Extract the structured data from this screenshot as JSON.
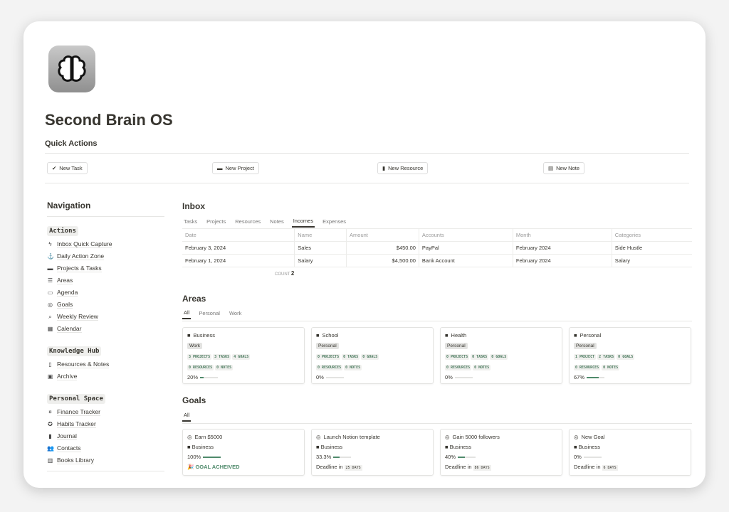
{
  "page": {
    "title": "Second Brain OS",
    "quick_actions_heading": "Quick Actions"
  },
  "quick_actions": [
    {
      "label": "New Task",
      "icon": "check-circle-icon"
    },
    {
      "label": "New Project",
      "icon": "folder-icon"
    },
    {
      "label": "New Resource",
      "icon": "bookmark-icon"
    },
    {
      "label": "New Note",
      "icon": "note-icon"
    }
  ],
  "navigation": {
    "heading": "Navigation",
    "groups": [
      {
        "label": "Actions",
        "items": [
          {
            "label": "Inbox Quick Capture",
            "icon": "bolt-icon"
          },
          {
            "label": "Daily Action Zone",
            "icon": "anchor-icon"
          },
          {
            "label": "Projects & Tasks",
            "icon": "folder-icon"
          },
          {
            "label": "Areas",
            "icon": "stack-icon"
          },
          {
            "label": "Agenda",
            "icon": "calendar-icon"
          },
          {
            "label": "Goals",
            "icon": "target-icon"
          },
          {
            "label": "Weekly Review",
            "icon": "search-icon"
          },
          {
            "label": "Calendar",
            "icon": "calendar-grid-icon"
          }
        ]
      },
      {
        "label": "Knowledge Hub",
        "items": [
          {
            "label": "Resources & Notes",
            "icon": "bookmark-icon"
          },
          {
            "label": "Archive",
            "icon": "archive-icon"
          }
        ]
      },
      {
        "label": "Personal Space",
        "items": [
          {
            "label": "Finance Tracker",
            "icon": "money-icon"
          },
          {
            "label": "Habits Tracker",
            "icon": "badge-check-icon"
          },
          {
            "label": "Journal",
            "icon": "journal-icon"
          },
          {
            "label": "Contacts",
            "icon": "people-icon"
          },
          {
            "label": "Books Library",
            "icon": "book-icon"
          }
        ]
      }
    ]
  },
  "inbox": {
    "heading": "Inbox",
    "tabs": [
      "Tasks",
      "Projects",
      "Resources",
      "Notes",
      "Incomes",
      "Expenses"
    ],
    "active_tab": "Incomes",
    "columns": [
      "Date",
      "Name",
      "Amount",
      "Accounts",
      "Month",
      "Categories"
    ],
    "rows": [
      [
        "February 3, 2024",
        "Sales",
        "$450.00",
        "PayPal",
        "February 2024",
        "Side Hustle"
      ],
      [
        "February 1, 2024",
        "Salary",
        "$4,500.00",
        "Bank Account",
        "February 2024",
        "Salary"
      ]
    ],
    "count_label": "COUNT",
    "count": "2"
  },
  "areas": {
    "heading": "Areas",
    "tabs": [
      "All",
      "Personal",
      "Work"
    ],
    "cards": [
      {
        "name": "Business",
        "tag": "Work",
        "stats1": [
          "3 PROJECTS",
          "3 TASKS",
          "4 GOALS"
        ],
        "stats2": [
          "0 RESOURCES",
          "0 NOTES"
        ],
        "progress": "20%",
        "pct": 20
      },
      {
        "name": "School",
        "tag": "Personal",
        "stats1": [
          "0 PROJECTS",
          "0 TASKS",
          "0 GOALS"
        ],
        "stats2": [
          "0 RESOURCES",
          "0 NOTES"
        ],
        "progress": "0%",
        "pct": 0
      },
      {
        "name": "Health",
        "tag": "Personal",
        "stats1": [
          "0 PROJECTS",
          "0 TASKS",
          "0 GOALS"
        ],
        "stats2": [
          "0 RESOURCES",
          "0 NOTES"
        ],
        "progress": "0%",
        "pct": 0
      },
      {
        "name": "Personal",
        "tag": "Personal",
        "stats1": [
          "1 PROJECT",
          "2 TASKS",
          "0 GOALS"
        ],
        "stats2": [
          "0 RESOURCES",
          "0 NOTES"
        ],
        "progress": "67%",
        "pct": 67
      }
    ]
  },
  "goals": {
    "heading": "Goals",
    "tabs": [
      "All"
    ],
    "cards": [
      {
        "name": "Earn $5000",
        "area": "Business",
        "progress": "100%",
        "pct": 100,
        "status": "GOAL ACHEIVED"
      },
      {
        "name": "Launch Notion template",
        "area": "Business",
        "progress": "33.3%",
        "pct": 33.3,
        "deadline_label": "Deadline in",
        "deadline": "25 DAYS"
      },
      {
        "name": "Gain 5000 followers",
        "area": "Business",
        "progress": "40%",
        "pct": 40,
        "deadline_label": "Deadline in",
        "deadline": "86 DAYS"
      },
      {
        "name": "New Goal",
        "area": "Business",
        "progress": "0%",
        "pct": 0,
        "deadline_label": "Deadline in",
        "deadline": "6 DAYS"
      }
    ]
  },
  "colors": {
    "accent": "#4f8a6b",
    "text": "#37352f"
  }
}
